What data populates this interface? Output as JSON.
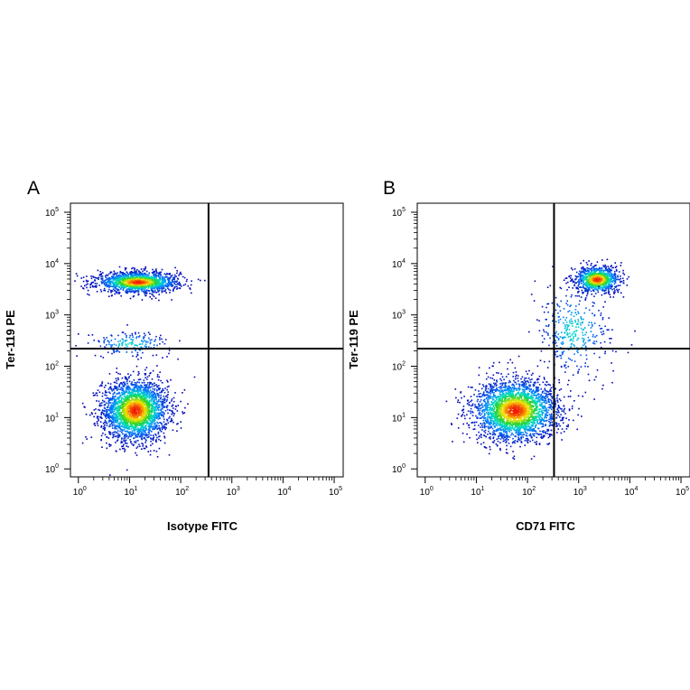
{
  "chart_data": [
    {
      "type": "scatter",
      "panel_label": "A",
      "xlabel": "Isotype FITC",
      "ylabel": "Ter-119 PE",
      "xscale": "log",
      "yscale": "log",
      "xlim": [
        0.7,
        150000
      ],
      "ylim": [
        0.7,
        150000
      ],
      "x_ticks": [
        1,
        10,
        100,
        1000,
        10000,
        100000
      ],
      "y_ticks": [
        1,
        10,
        100,
        1000,
        10000,
        100000
      ],
      "tick_labels": [
        "10",
        "10",
        "10",
        "10",
        "10",
        "10"
      ],
      "tick_exponents": [
        "0",
        "1",
        "2",
        "3",
        "4",
        "5"
      ],
      "quadrant_gate": {
        "x": 350,
        "y": 220
      },
      "colormap": "density: blue-cyan-green-yellow-red",
      "populations": [
        {
          "center_log": [
            1.1,
            1.15
          ],
          "spread_log": [
            0.32,
            0.3
          ],
          "count": 2600
        },
        {
          "center_log": [
            1.15,
            3.65
          ],
          "spread_log": [
            0.4,
            0.1
          ],
          "count": 1500
        },
        {
          "center_log": [
            1.0,
            2.45
          ],
          "spread_log": [
            0.4,
            0.12
          ],
          "count": 180
        }
      ]
    },
    {
      "type": "scatter",
      "panel_label": "B",
      "xlabel": "CD71 FITC",
      "ylabel": "Ter-119 PE",
      "xscale": "log",
      "yscale": "log",
      "xlim": [
        0.7,
        150000
      ],
      "ylim": [
        0.7,
        150000
      ],
      "x_ticks": [
        1,
        10,
        100,
        1000,
        10000,
        100000
      ],
      "y_ticks": [
        1,
        10,
        100,
        1000,
        10000,
        100000
      ],
      "tick_labels": [
        "10",
        "10",
        "10",
        "10",
        "10",
        "10"
      ],
      "tick_exponents": [
        "0",
        "1",
        "2",
        "3",
        "4",
        "5"
      ],
      "quadrant_gate": {
        "x": 330,
        "y": 220
      },
      "colormap": "density: blue-cyan-green-yellow-red",
      "populations": [
        {
          "center_log": [
            1.75,
            1.15
          ],
          "spread_log": [
            0.42,
            0.3
          ],
          "count": 2700
        },
        {
          "center_log": [
            3.35,
            3.7
          ],
          "spread_log": [
            0.22,
            0.13
          ],
          "count": 900
        },
        {
          "center_log": [
            2.9,
            2.7
          ],
          "spread_log": [
            0.35,
            0.45
          ],
          "count": 350
        }
      ]
    }
  ]
}
